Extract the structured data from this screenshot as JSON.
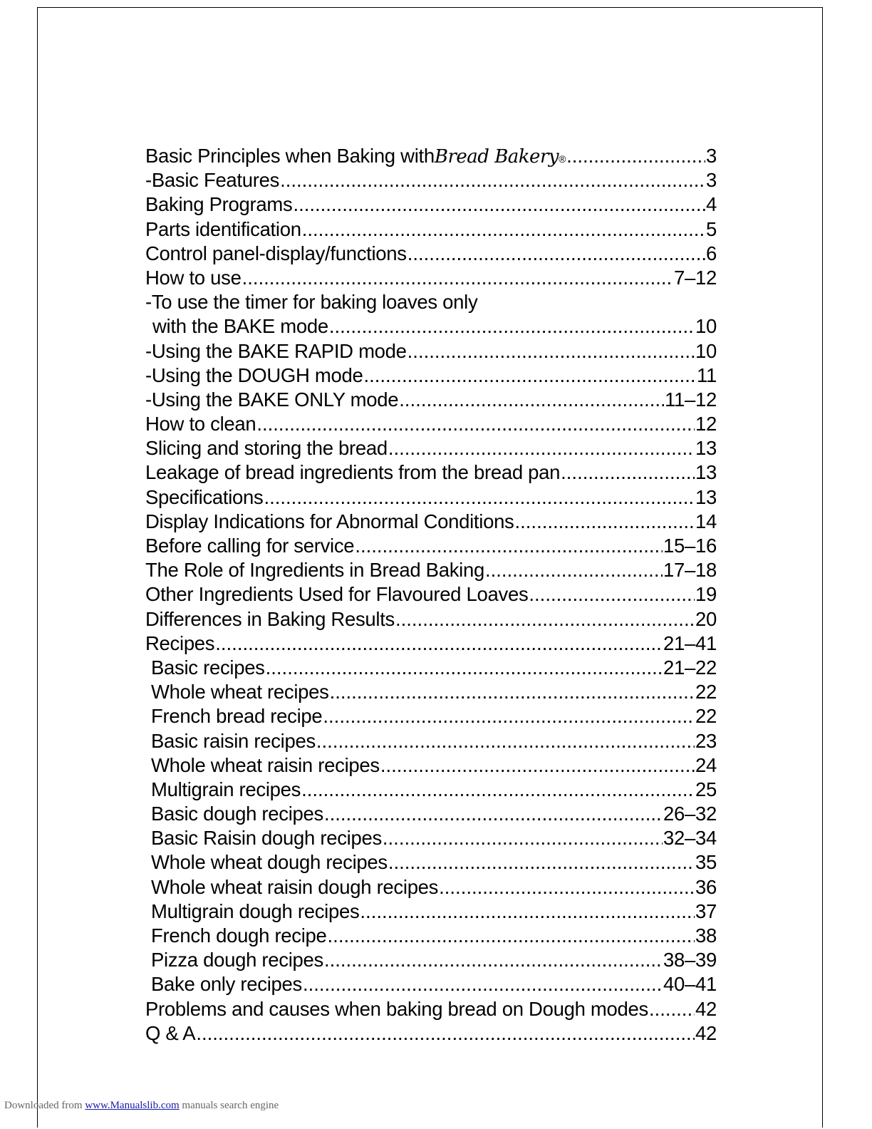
{
  "toc": [
    {
      "label": "Basic Principles when Baking with ",
      "brand": "Bread Bakery",
      "reg": "®",
      "page": "3",
      "indent": 0
    },
    {
      "label": "-Basic Features ",
      "page": "3",
      "indent": 0
    },
    {
      "label": "Baking Programs",
      "page": "4",
      "indent": 0
    },
    {
      "label": "Parts identification ",
      "page": "5",
      "indent": 0
    },
    {
      "label": "Control panel-display/functions",
      "page": "6",
      "indent": 0
    },
    {
      "label": "How to use",
      "page": "7–12",
      "indent": 0
    },
    {
      "label": "-To use the timer for baking loaves only",
      "page": "",
      "indent": 0,
      "noleader": true
    },
    {
      "label": "with the BAKE mode",
      "page": "10",
      "indent": 2
    },
    {
      "label": "-Using the BAKE RAPID mode ",
      "page": "10",
      "indent": 0
    },
    {
      "label": "-Using the DOUGH mode",
      "page": "11",
      "indent": 0
    },
    {
      "label": "-Using the BAKE ONLY mode ",
      "page": "11–12",
      "indent": 0
    },
    {
      "label": "How to clean",
      "page": "12",
      "indent": 0
    },
    {
      "label": "Slicing and storing the bread ",
      "page": "13",
      "indent": 0
    },
    {
      "label": "Leakage of bread ingredients from the bread pan",
      "page": "13",
      "indent": 0
    },
    {
      "label": "Specifications",
      "page": " 13",
      "indent": 0
    },
    {
      "label": "Display Indications for Abnormal Conditions ",
      "page": "14",
      "indent": 0
    },
    {
      "label": "Before calling for service ",
      "page": "15–16",
      "indent": 0
    },
    {
      "label": "The Role of Ingredients in Bread Baking ",
      "page": "17–18",
      "indent": 0
    },
    {
      "label": "Other Ingredients Used for Flavoured Loaves",
      "page": "19",
      "indent": 0
    },
    {
      "label": "Differences in Baking Results",
      "page": "20",
      "indent": 0
    },
    {
      "label": "Recipes",
      "page": "21–41",
      "indent": 0
    },
    {
      "label": "Basic recipes",
      "page": " 21–22",
      "indent": 1
    },
    {
      "label": "Whole wheat recipes",
      "page": "22",
      "indent": 1
    },
    {
      "label": "French bread recipe",
      "page": "22",
      "indent": 1
    },
    {
      "label": "Basic raisin recipes ",
      "page": "23",
      "indent": 1
    },
    {
      "label": "Whole wheat raisin recipes ",
      "page": " 24",
      "indent": 1
    },
    {
      "label": "Multigrain recipes",
      "page": " 25",
      "indent": 1
    },
    {
      "label": "Basic dough recipes ",
      "page": "26–32",
      "indent": 1
    },
    {
      "label": "Basic Raisin dough recipes ",
      "page": "32–34",
      "indent": 1
    },
    {
      "label": "Whole wheat dough recipes ",
      "page": "35",
      "indent": 1
    },
    {
      "label": "Whole wheat raisin dough recipes",
      "page": "36",
      "indent": 1
    },
    {
      "label": "Multigrain dough recipes",
      "page": "37",
      "indent": 1
    },
    {
      "label": "French dough recipe",
      "page": "38",
      "indent": 1
    },
    {
      "label": "Pizza dough recipes",
      "page": "38–39",
      "indent": 1
    },
    {
      "label": "Bake only recipes ",
      "page": " 40–41",
      "indent": 1
    },
    {
      "label": "Problems and causes when baking bread on Dough modes",
      "page": "42",
      "indent": 0
    },
    {
      "label": "Q & A",
      "page": "42",
      "indent": 0
    }
  ],
  "footer": {
    "prefix": "Downloaded from ",
    "link": "www.Manualslib.com",
    "suffix": "  manuals search engine"
  }
}
